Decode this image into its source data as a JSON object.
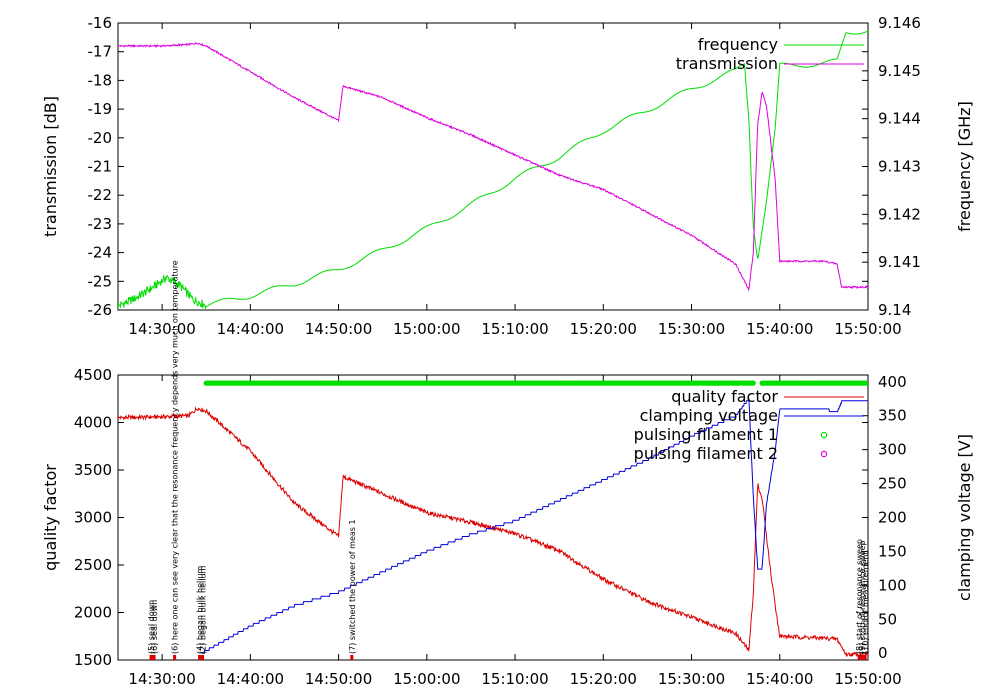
{
  "chart_data": [
    {
      "type": "line",
      "name": "top-panel",
      "x_range": [
        "14:25:00",
        "15:50:00"
      ],
      "x_ticks": [
        "14:30:00",
        "14:40:00",
        "14:50:00",
        "15:00:00",
        "15:10:00",
        "15:20:00",
        "15:30:00",
        "15:40:00",
        "15:50:00"
      ],
      "ylabel": "transmission [dB]",
      "ylim": [
        -26,
        -16
      ],
      "y_ticks": [
        "-26",
        "-25",
        "-24",
        "-23",
        "-22",
        "-21",
        "-20",
        "-19",
        "-18",
        "-17",
        "-16"
      ],
      "y2label": "frequency [GHz]",
      "y2lim": [
        9.14,
        9.146
      ],
      "y2_ticks": [
        "9.14",
        "9.141",
        "9.142",
        "9.143",
        "9.144",
        "9.145",
        "9.146"
      ],
      "legend_position": "top-right",
      "grid": false,
      "series": [
        {
          "name": "frequency",
          "axis": "right",
          "color": "#00dd00",
          "points": [
            [
              "14:25:00",
              9.14008
            ],
            [
              "14:27:00",
              9.14025
            ],
            [
              "14:29:00",
              9.14048
            ],
            [
              "14:30:30",
              9.14068
            ],
            [
              "14:32:00",
              9.14052
            ],
            [
              "14:33:30",
              9.14022
            ],
            [
              "14:35:00",
              9.1401
            ],
            [
              "14:40:00",
              9.1403
            ],
            [
              "14:45:00",
              9.14055
            ],
            [
              "14:50:00",
              9.14085
            ],
            [
              "14:55:00",
              9.14125
            ],
            [
              "15:00:00",
              9.1417
            ],
            [
              "15:05:00",
              9.1422
            ],
            [
              "15:10:00",
              9.14275
            ],
            [
              "15:15:00",
              9.1432
            ],
            [
              "15:20:00",
              9.14375
            ],
            [
              "15:25:00",
              9.14418
            ],
            [
              "15:30:00",
              9.14462
            ],
            [
              "15:35:00",
              9.145
            ],
            [
              "15:36:00",
              9.14515
            ],
            [
              "15:36:30",
              9.144
            ],
            [
              "15:37:00",
              9.1418
            ],
            [
              "15:37:30",
              9.1411
            ],
            [
              "15:38:30",
              9.1423
            ],
            [
              "15:39:30",
              9.1438
            ],
            [
              "15:40:00",
              9.1451
            ],
            [
              "15:45:00",
              9.14515
            ],
            [
              "15:46:30",
              9.1452
            ],
            [
              "15:47:30",
              9.1458
            ],
            [
              "15:50:00",
              9.14585
            ]
          ]
        },
        {
          "name": "transmission",
          "axis": "left",
          "color": "#dd00dd",
          "points": [
            [
              "14:25:00",
              -16.8
            ],
            [
              "14:30:00",
              -16.8
            ],
            [
              "14:33:00",
              -16.75
            ],
            [
              "14:34:00",
              -16.7
            ],
            [
              "14:35:00",
              -16.8
            ],
            [
              "14:40:00",
              -17.7
            ],
            [
              "14:45:00",
              -18.6
            ],
            [
              "14:50:00",
              -19.4
            ],
            [
              "14:50:30",
              -18.2
            ],
            [
              "14:55:00",
              -18.6
            ],
            [
              "15:00:00",
              -19.3
            ],
            [
              "15:05:00",
              -19.9
            ],
            [
              "15:10:00",
              -20.6
            ],
            [
              "15:15:00",
              -21.3
            ],
            [
              "15:20:00",
              -21.8
            ],
            [
              "15:25:00",
              -22.6
            ],
            [
              "15:30:00",
              -23.4
            ],
            [
              "15:35:00",
              -24.4
            ],
            [
              "15:36:30",
              -25.3
            ],
            [
              "15:37:00",
              -24.0
            ],
            [
              "15:37:30",
              -19.5
            ],
            [
              "15:38:00",
              -18.4
            ],
            [
              "15:38:30",
              -18.9
            ],
            [
              "15:39:30",
              -21.5
            ],
            [
              "15:40:00",
              -24.3
            ],
            [
              "15:45:00",
              -24.3
            ],
            [
              "15:46:30",
              -24.4
            ],
            [
              "15:47:00",
              -25.2
            ],
            [
              "15:50:00",
              -25.2
            ]
          ]
        }
      ]
    },
    {
      "type": "line",
      "name": "bottom-panel",
      "x_range": [
        "14:25:00",
        "15:50:00"
      ],
      "x_ticks": [
        "14:30:00",
        "14:40:00",
        "14:50:00",
        "15:00:00",
        "15:10:00",
        "15:20:00",
        "15:30:00",
        "15:40:00",
        "15:50:00"
      ],
      "ylabel": "quality factor",
      "ylim": [
        1500,
        4500
      ],
      "y_ticks": [
        "1500",
        "2000",
        "2500",
        "3000",
        "3500",
        "4000",
        "4500"
      ],
      "y2label": "clamping voltage [V]",
      "y2lim": [
        -10,
        410
      ],
      "y2_ticks": [
        "0",
        "50",
        "100",
        "150",
        "200",
        "250",
        "300",
        "350",
        "400"
      ],
      "legend_position": "top-right",
      "grid": false,
      "series": [
        {
          "name": "quality factor",
          "axis": "left",
          "color": "#dd0000",
          "points": [
            [
              "14:25:00",
              4050
            ],
            [
              "14:30:00",
              4060
            ],
            [
              "14:33:00",
              4070
            ],
            [
              "14:34:00",
              4150
            ],
            [
              "14:35:00",
              4120
            ],
            [
              "14:40:00",
              3700
            ],
            [
              "14:45:00",
              3150
            ],
            [
              "14:50:00",
              2800
            ],
            [
              "14:50:30",
              3430
            ],
            [
              "14:55:00",
              3250
            ],
            [
              "15:00:00",
              3050
            ],
            [
              "15:05:00",
              2950
            ],
            [
              "15:10:00",
              2830
            ],
            [
              "15:15:00",
              2650
            ],
            [
              "15:20:00",
              2350
            ],
            [
              "15:25:00",
              2120
            ],
            [
              "15:30:00",
              1950
            ],
            [
              "15:35:00",
              1780
            ],
            [
              "15:36:30",
              1600
            ],
            [
              "15:37:00",
              2200
            ],
            [
              "15:37:30",
              3350
            ],
            [
              "15:38:00",
              3200
            ],
            [
              "15:39:00",
              2400
            ],
            [
              "15:40:00",
              1750
            ],
            [
              "15:45:00",
              1730
            ],
            [
              "15:46:30",
              1720
            ],
            [
              "15:47:30",
              1560
            ],
            [
              "15:50:00",
              1560
            ]
          ]
        },
        {
          "name": "clamping voltage",
          "axis": "right",
          "color": "#0000dd",
          "points": [
            [
              "14:34:30",
              0
            ],
            [
              "14:40:00",
              40
            ],
            [
              "14:45:00",
              70
            ],
            [
              "14:50:00",
              90
            ],
            [
              "14:55:00",
              120
            ],
            [
              "15:00:00",
              150
            ],
            [
              "15:05:00",
              175
            ],
            [
              "15:10:00",
              195
            ],
            [
              "15:15:00",
              225
            ],
            [
              "15:20:00",
              255
            ],
            [
              "15:25:00",
              285
            ],
            [
              "15:30:00",
              320
            ],
            [
              "15:35:00",
              350
            ],
            [
              "15:36:30",
              375
            ],
            [
              "15:37:00",
              230
            ],
            [
              "15:37:30",
              125
            ],
            [
              "15:38:00",
              125
            ],
            [
              "15:38:30",
              220
            ],
            [
              "15:39:30",
              300
            ],
            [
              "15:40:00",
              360
            ],
            [
              "15:45:00",
              360
            ],
            [
              "15:46:30",
              355
            ],
            [
              "15:47:00",
              370
            ],
            [
              "15:50:00",
              370
            ]
          ]
        },
        {
          "name": "pulsing filament 1",
          "axis": "right",
          "color": "#00dd00",
          "style": "points",
          "segments": [
            {
              "start": "14:35:00",
              "end": "15:37:00",
              "value": 398
            },
            {
              "start": "15:38:00",
              "end": "15:50:00",
              "value": 398
            }
          ]
        },
        {
          "name": "pulsing filament 2",
          "axis": "right",
          "color": "#dd00dd",
          "style": "points",
          "segments": []
        }
      ],
      "annotations": [
        {
          "time": "14:28:45",
          "text": "(5) seal down"
        },
        {
          "time": "14:29:05",
          "text": "(6) seal down"
        },
        {
          "time": "14:31:25",
          "text": "(6) here one can see very clear that the resonance frequency depends very much on temperature"
        },
        {
          "time": "14:34:15",
          "text": "(4) began bulk helium"
        },
        {
          "time": "14:34:35",
          "text": "(2) began bulk helium"
        },
        {
          "time": "14:51:30",
          "text": "(7) switched the power of meas 1"
        },
        {
          "time": "15:49:00",
          "text": "(8) start of resonance sweep"
        },
        {
          "time": "15:49:20",
          "text": "(9) stop of resonance sweep"
        },
        {
          "time": "15:49:40",
          "text": "(10) end of measurement"
        }
      ]
    }
  ]
}
